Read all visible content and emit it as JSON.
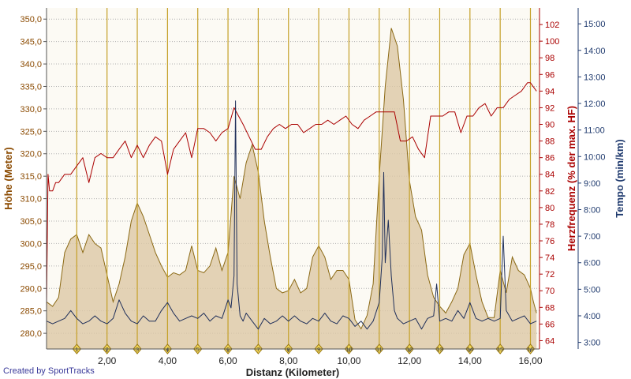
{
  "chart_data": {
    "type": "line",
    "xlabel": "Distanz (Kilometer)",
    "x_range": [
      0,
      16.3
    ],
    "x_ticks": [
      2,
      4,
      6,
      8,
      10,
      12,
      14,
      16
    ],
    "x_tick_labels": [
      "2,00",
      "4,00",
      "6,00",
      "8,00",
      "10,00",
      "12,00",
      "14,00",
      "16,00"
    ],
    "axes": {
      "left": {
        "label": "Höhe (Meter)",
        "range": [
          276.5,
          352.5
        ],
        "ticks": [
          280,
          285,
          290,
          295,
          300,
          305,
          310,
          315,
          320,
          325,
          330,
          335,
          340,
          345,
          350
        ],
        "tick_labels": [
          "280,0",
          "285,0",
          "290,0",
          "295,0",
          "300,0",
          "305,0",
          "310,0",
          "315,0",
          "320,0",
          "325,0",
          "330,0",
          "335,0",
          "340,0",
          "345,0",
          "350,0"
        ]
      },
      "right1": {
        "label": "Herzfrequenz (% der max. HF)",
        "range": [
          63,
          104
        ],
        "ticks": [
          64,
          66,
          68,
          70,
          72,
          74,
          76,
          78,
          80,
          82,
          84,
          86,
          88,
          90,
          92,
          94,
          96,
          98,
          100,
          102
        ],
        "tick_labels": [
          "64",
          "66",
          "68",
          "70",
          "72",
          "74",
          "76",
          "78",
          "80",
          "82",
          "84",
          "86",
          "88",
          "90",
          "92",
          "94",
          "96",
          "98",
          "100",
          "102"
        ]
      },
      "right2": {
        "label": "Tempo (min/km)",
        "range": [
          2.75,
          15.6
        ],
        "ticks": [
          3,
          4,
          5,
          6,
          7,
          8,
          9,
          10,
          11,
          12,
          13,
          14,
          15
        ],
        "tick_labels": [
          "3:00",
          "4:00",
          "5:00",
          "6:00",
          "7:00",
          "8:00",
          "9:00",
          "10:00",
          "11:00",
          "12:00",
          "13:00",
          "14:00",
          "15:00"
        ]
      }
    },
    "km_markers": {
      "x": [
        1,
        2,
        3,
        4,
        5,
        6,
        7,
        8,
        9,
        10,
        11,
        12,
        13,
        14,
        15,
        16
      ],
      "labels": [
        "1",
        "2",
        "3",
        "4",
        "5",
        "6",
        "7",
        "8",
        "9",
        "10",
        "11",
        "12",
        "13",
        "14",
        "15",
        "16"
      ]
    },
    "series": [
      {
        "name": "Höhe (Meter)",
        "axis": "left",
        "style": "area",
        "color": "#8b6914",
        "fill": "#dcc8a5",
        "x": [
          0,
          0.2,
          0.4,
          0.6,
          0.8,
          1.0,
          1.2,
          1.4,
          1.6,
          1.8,
          2.0,
          2.2,
          2.4,
          2.6,
          2.8,
          3.0,
          3.2,
          3.4,
          3.6,
          3.8,
          4.0,
          4.2,
          4.4,
          4.6,
          4.8,
          5.0,
          5.2,
          5.4,
          5.6,
          5.8,
          6.0,
          6.2,
          6.4,
          6.6,
          6.8,
          7.0,
          7.2,
          7.4,
          7.6,
          7.8,
          8.0,
          8.2,
          8.4,
          8.6,
          8.8,
          9.0,
          9.2,
          9.4,
          9.6,
          9.8,
          10.0,
          10.2,
          10.4,
          10.6,
          10.8,
          11.0,
          11.2,
          11.4,
          11.6,
          11.8,
          12.0,
          12.2,
          12.4,
          12.6,
          12.8,
          13.0,
          13.2,
          13.4,
          13.6,
          13.8,
          14.0,
          14.2,
          14.4,
          14.6,
          14.8,
          15.0,
          15.2,
          15.4,
          15.6,
          15.8,
          16.0,
          16.1,
          16.2
        ],
        "y": [
          287.0,
          286.0,
          288.0,
          298.0,
          301.0,
          302.0,
          298.0,
          302.0,
          300.0,
          299.0,
          293.0,
          287.0,
          291.0,
          297.0,
          305.0,
          309.0,
          306.0,
          302.0,
          298.0,
          295.0,
          292.5,
          293.5,
          293.0,
          294.0,
          299.5,
          294.0,
          293.5,
          295.0,
          299.0,
          294.0,
          298.0,
          315.0,
          310.0,
          318.0,
          322.0,
          316.0,
          305.0,
          297.0,
          290.0,
          289.0,
          289.5,
          292.0,
          289.0,
          290.0,
          297.0,
          299.5,
          297.0,
          292.0,
          294.0,
          294.0,
          292.0,
          283.0,
          281.0,
          284.0,
          291.0,
          315.0,
          335.0,
          348.0,
          344.0,
          332.0,
          314.0,
          306.0,
          303.0,
          293.0,
          288.0,
          286.0,
          284.5,
          287.0,
          290.0,
          297.5,
          300.0,
          293.0,
          287.0,
          283.5,
          283.5,
          294.0,
          289.0,
          297.0,
          294.0,
          293.0,
          290.0,
          287.0,
          284.5
        ]
      },
      {
        "name": "Herzfrequenz (% der max. HF)",
        "axis": "right1",
        "style": "line",
        "color": "#aa0000",
        "x": [
          0,
          0.05,
          0.1,
          0.2,
          0.3,
          0.4,
          0.6,
          0.8,
          1.0,
          1.2,
          1.4,
          1.6,
          1.8,
          2.0,
          2.2,
          2.4,
          2.6,
          2.8,
          3.0,
          3.2,
          3.4,
          3.6,
          3.8,
          4.0,
          4.2,
          4.4,
          4.6,
          4.8,
          5.0,
          5.2,
          5.4,
          5.6,
          5.8,
          6.0,
          6.2,
          6.35,
          6.5,
          6.7,
          6.9,
          7.1,
          7.3,
          7.5,
          7.7,
          7.9,
          8.1,
          8.3,
          8.5,
          8.7,
          8.9,
          9.1,
          9.3,
          9.5,
          9.7,
          9.9,
          10.1,
          10.3,
          10.5,
          10.7,
          10.9,
          11.1,
          11.3,
          11.5,
          11.7,
          11.9,
          12.1,
          12.3,
          12.5,
          12.7,
          12.9,
          13.1,
          13.3,
          13.5,
          13.7,
          13.9,
          14.1,
          14.3,
          14.5,
          14.7,
          14.9,
          15.1,
          15.3,
          15.5,
          15.7,
          15.9,
          16.0,
          16.1,
          16.2
        ],
        "y": [
          68,
          84,
          82,
          82,
          83,
          83,
          84,
          84,
          85,
          86,
          83,
          86,
          86.5,
          86,
          86,
          87,
          88,
          86,
          87.5,
          86,
          87.5,
          88.5,
          88,
          84,
          87,
          88,
          89,
          86,
          89.5,
          89.5,
          89,
          88,
          89,
          89.5,
          92,
          91,
          90,
          88.5,
          87,
          87,
          88.5,
          89.5,
          90,
          89.5,
          90,
          90,
          89,
          89.5,
          90,
          90,
          90.5,
          90,
          90.5,
          91,
          90,
          89.5,
          90.5,
          91,
          91.5,
          91.5,
          91.5,
          91.5,
          88,
          88,
          88.5,
          87,
          86,
          91,
          91,
          91,
          91.5,
          91.5,
          89,
          91,
          91,
          92,
          92.5,
          91,
          92,
          92,
          93,
          93.5,
          94,
          95,
          95,
          94.5,
          94
        ]
      },
      {
        "name": "Tempo (min/km)",
        "axis": "right2",
        "style": "line",
        "color": "#1f2f5a",
        "x": [
          0,
          0.2,
          0.4,
          0.6,
          0.8,
          1.0,
          1.2,
          1.4,
          1.6,
          1.8,
          2.0,
          2.2,
          2.4,
          2.6,
          2.8,
          3.0,
          3.2,
          3.4,
          3.6,
          3.8,
          4.0,
          4.2,
          4.4,
          4.6,
          4.8,
          5.0,
          5.2,
          5.4,
          5.6,
          5.8,
          6.0,
          6.1,
          6.2,
          6.25,
          6.3,
          6.4,
          6.5,
          6.6,
          6.8,
          7.0,
          7.2,
          7.4,
          7.6,
          7.8,
          8.0,
          8.2,
          8.4,
          8.6,
          8.8,
          9.0,
          9.2,
          9.4,
          9.6,
          9.8,
          10.0,
          10.2,
          10.4,
          10.6,
          10.8,
          11.0,
          11.1,
          11.15,
          11.2,
          11.3,
          11.4,
          11.5,
          11.6,
          11.8,
          12.0,
          12.2,
          12.4,
          12.6,
          12.8,
          12.9,
          13.0,
          13.2,
          13.4,
          13.6,
          13.8,
          14.0,
          14.2,
          14.4,
          14.6,
          14.8,
          15.0,
          15.05,
          15.1,
          15.2,
          15.4,
          15.6,
          15.8,
          16.0,
          16.2
        ],
        "y": [
          3.8,
          3.7,
          3.8,
          3.9,
          4.2,
          3.9,
          3.7,
          3.8,
          4.0,
          3.8,
          3.7,
          3.9,
          4.6,
          4.1,
          3.8,
          3.7,
          4.0,
          3.8,
          3.8,
          4.2,
          4.5,
          4.1,
          3.8,
          3.9,
          4.0,
          3.9,
          4.1,
          3.8,
          4.0,
          3.9,
          4.6,
          4.3,
          5.5,
          12.1,
          5.2,
          4.0,
          3.8,
          4.1,
          3.8,
          3.5,
          3.9,
          3.7,
          3.8,
          4.0,
          3.8,
          4.0,
          3.8,
          3.7,
          3.9,
          3.8,
          4.1,
          3.8,
          3.7,
          4.0,
          3.9,
          3.6,
          3.8,
          3.5,
          3.8,
          4.5,
          6.2,
          9.4,
          6.0,
          7.6,
          5.5,
          4.2,
          3.9,
          3.7,
          3.8,
          3.9,
          3.5,
          3.9,
          4.0,
          5.2,
          3.8,
          3.9,
          3.8,
          4.2,
          3.9,
          4.5,
          3.9,
          3.8,
          3.9,
          3.8,
          3.9,
          5.5,
          7.0,
          4.2,
          3.8,
          3.9,
          4.0,
          3.7,
          3.8
        ]
      }
    ],
    "grid": "horizontal-dotted",
    "background": "#fcfaf4",
    "axis_colors": {
      "left": "#8b4a00",
      "right1": "#aa0000",
      "right2": "#1f3a6e"
    }
  },
  "footer": {
    "credit": "Created by SportTracks"
  }
}
